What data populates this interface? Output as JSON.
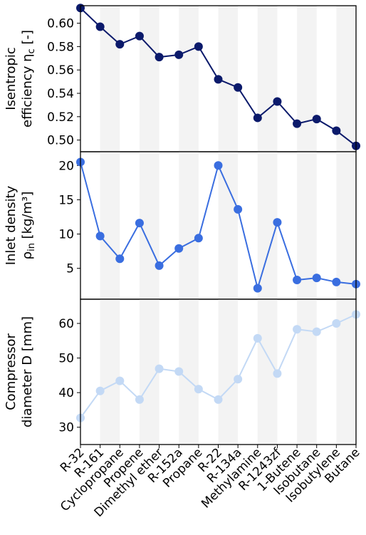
{
  "chart_data": [
    {
      "type": "line",
      "ylabel_line1": "Isentropic",
      "ylabel_line2": "efficiency η",
      "ylabel_sub": "c",
      "ylabel_unit": " [-]",
      "color": "#0b1a6b",
      "ylim": [
        0.49,
        0.615
      ],
      "yticks": [
        0.5,
        0.52,
        0.54,
        0.56,
        0.58,
        0.6
      ],
      "ytick_labels": [
        "0.50",
        "0.52",
        "0.54",
        "0.56",
        "0.58",
        "0.60"
      ],
      "values": [
        0.613,
        0.597,
        0.582,
        0.589,
        0.571,
        0.573,
        0.58,
        0.552,
        0.545,
        0.519,
        0.533,
        0.514,
        0.518,
        0.508,
        0.495
      ]
    },
    {
      "type": "line",
      "ylabel_line1": "Inlet density",
      "ylabel_line2": "ρ",
      "ylabel_sub": "in",
      "ylabel_unit": " [kg/m³]",
      "color": "#3a6ee0",
      "ylim": [
        0.5,
        22
      ],
      "yticks": [
        5,
        10,
        15,
        20
      ],
      "ytick_labels": [
        "5",
        "10",
        "15",
        "20"
      ],
      "values": [
        20.5,
        9.7,
        6.4,
        11.6,
        5.4,
        7.9,
        9.4,
        20.0,
        13.6,
        2.1,
        11.7,
        3.3,
        3.6,
        3.0,
        2.7
      ]
    },
    {
      "type": "line",
      "ylabel_line1": "Compressor",
      "ylabel_line2": "diameter D",
      "ylabel_sub": "",
      "ylabel_unit": " [mm]",
      "color": "#c3d9f5",
      "ylim": [
        25,
        67
      ],
      "yticks": [
        30,
        40,
        50,
        60
      ],
      "ytick_labels": [
        "30",
        "40",
        "50",
        "60"
      ],
      "values": [
        32.7,
        40.5,
        43.4,
        38.0,
        46.9,
        46.1,
        41.0,
        38.0,
        43.9,
        55.7,
        45.5,
        58.3,
        57.6,
        60.0,
        62.6
      ]
    }
  ],
  "categories": [
    "R-32",
    "R-161",
    "Cyclopropane",
    "Propene",
    "Dimethyl ether",
    "R-152a",
    "Propane",
    "R-22",
    "R-134a",
    "Methylamine",
    "R-1243zf",
    "1-Butene",
    "Isobutane",
    "Isobutylene",
    "Butane"
  ],
  "band_color": "#f3f3f3"
}
